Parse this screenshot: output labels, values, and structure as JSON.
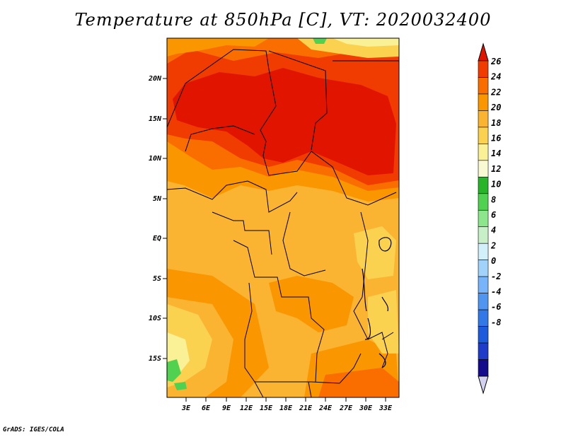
{
  "title": "Temperature at 850hPa [C], VT: 2020032400",
  "credit": "GrADS: IGES/COLA",
  "map": {
    "region": "Central Africa",
    "variable": "Temperature at 850hPa",
    "units": "C",
    "lat_labels": [
      "20N",
      "15N",
      "10N",
      "5N",
      "EQ",
      "5S",
      "10S",
      "15S"
    ],
    "lon_labels": [
      "3E",
      "6E",
      "9E",
      "12E",
      "15E",
      "18E",
      "21E",
      "24E",
      "27E",
      "30E",
      "33E"
    ],
    "features": [
      "country borders",
      "coastline",
      "lakes"
    ]
  },
  "colorbar": {
    "labels": [
      "26",
      "24",
      "22",
      "20",
      "18",
      "16",
      "14",
      "12",
      "10",
      "8",
      "6",
      "4",
      "2",
      "0",
      "-2",
      "-4",
      "-6",
      "-8"
    ],
    "colors": [
      "#e11400",
      "#f03c00",
      "#fa6e00",
      "#fa9600",
      "#fab432",
      "#fad250",
      "#faf096",
      "#fafad2",
      "#28b428",
      "#50d250",
      "#8ce68c",
      "#c8f0c8",
      "#d2f0fa",
      "#a0d2fa",
      "#78b4fa",
      "#5096f0",
      "#3278e6",
      "#1e5adc",
      "#1e3cc8",
      "#140a8c",
      "#d2d2f0"
    ]
  }
}
